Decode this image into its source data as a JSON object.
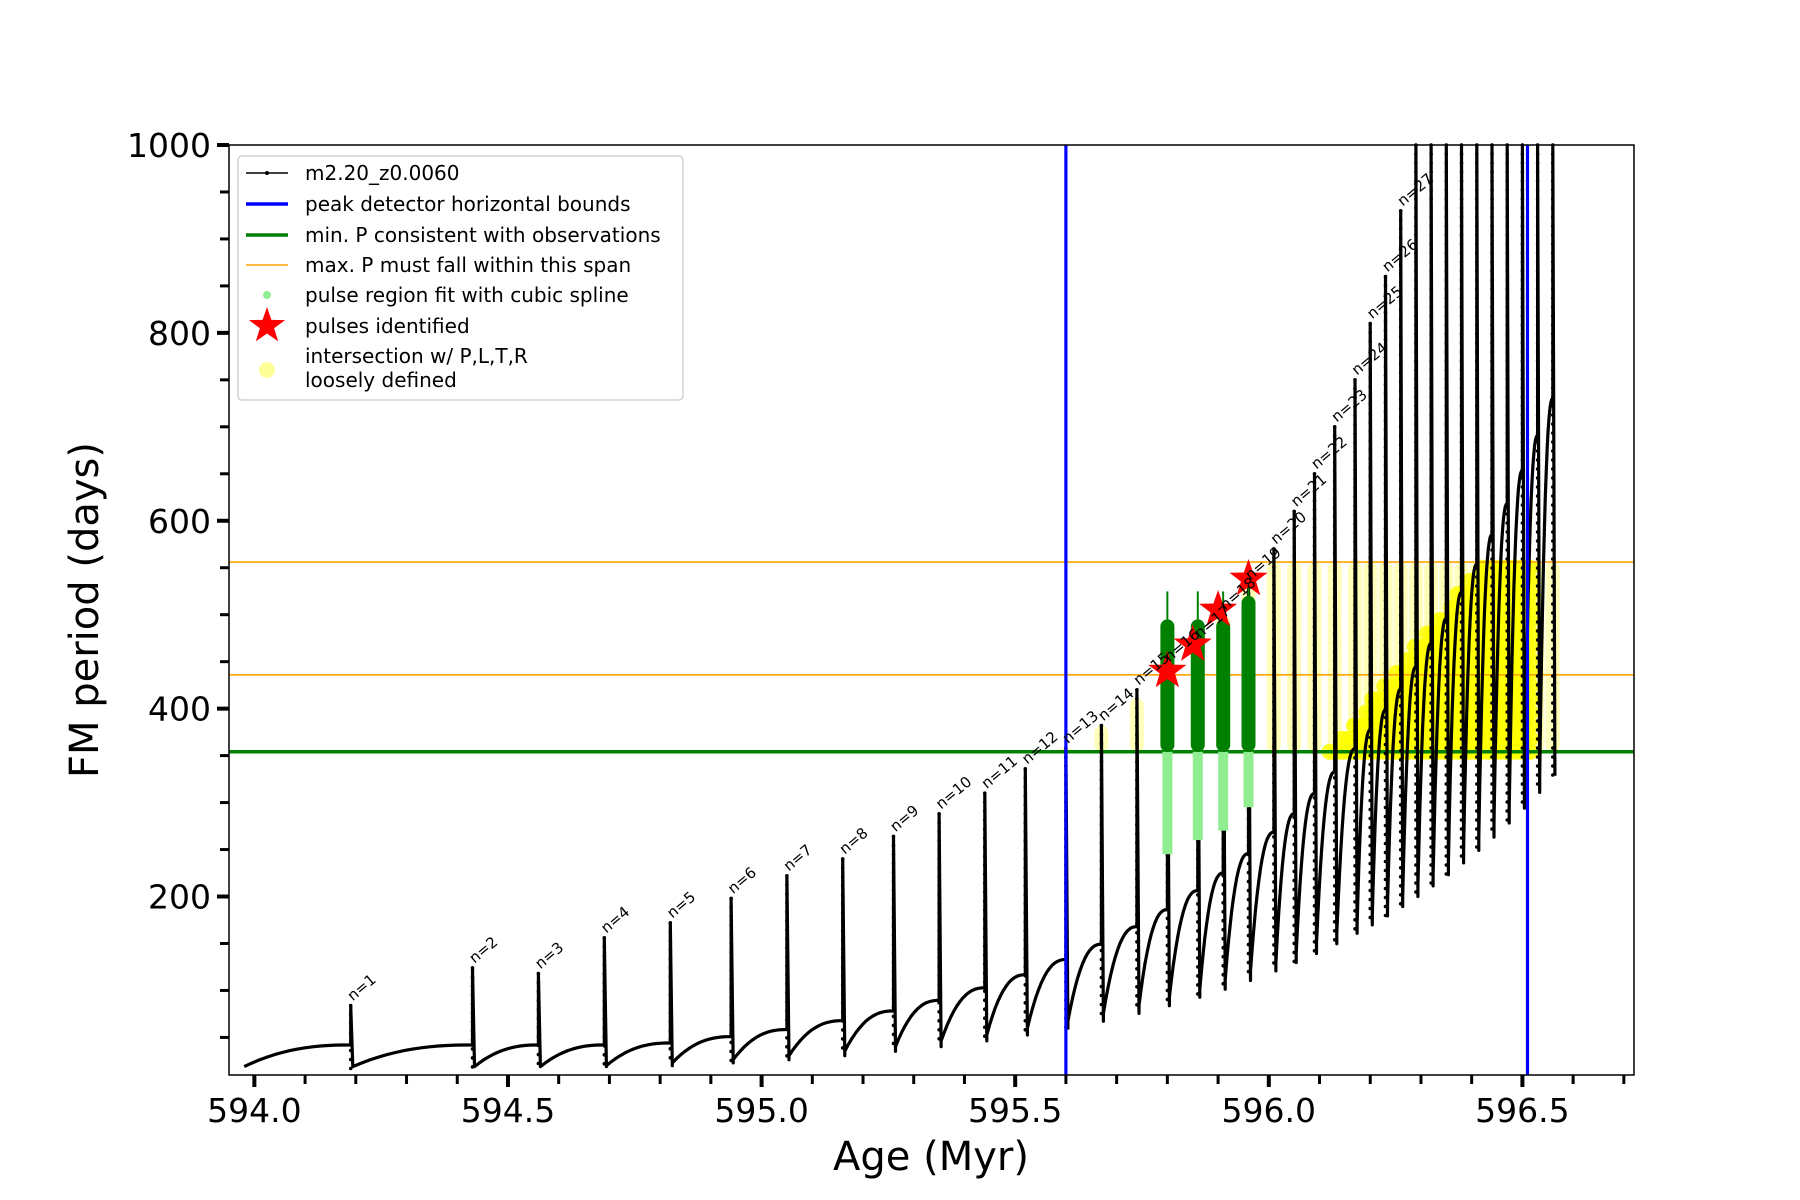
{
  "chart_data": {
    "type": "line",
    "xlabel": "Age (Myr)",
    "ylabel": "FM period (days)",
    "xlim": [
      593.95,
      596.72
    ],
    "ylim": [
      10,
      1000
    ],
    "x_major_ticks": [
      594.0,
      594.5,
      595.0,
      595.5,
      596.0,
      596.5
    ],
    "x_tick_labels": [
      "594.0",
      "594.5",
      "595.0",
      "595.5",
      "596.0",
      "596.5"
    ],
    "x_minor_step": 0.1,
    "y_major_ticks": [
      200,
      400,
      600,
      800,
      1000
    ],
    "y_tick_labels": [
      "200",
      "400",
      "600",
      "800",
      "1000"
    ],
    "y_minor_step": 50,
    "grid": false,
    "legend_position": "top-left",
    "legend": [
      {
        "label": "m2.20_z0.0060",
        "kind": "line-marker",
        "color": "#000000"
      },
      {
        "label": "peak detector horizontal bounds",
        "kind": "line",
        "color": "#0000ff"
      },
      {
        "label": "min. P consistent with observations",
        "kind": "line",
        "color": "#008000"
      },
      {
        "label": "max. P must fall within this span",
        "kind": "thin-line",
        "color": "#ffa500"
      },
      {
        "label": "pulse region fit with cubic spline",
        "kind": "dot",
        "color": "#90ee90"
      },
      {
        "label": "pulses identified",
        "kind": "star",
        "color": "#ff0000"
      },
      {
        "label": "intersection w/ P,L,T,R",
        "label2": "loosely defined",
        "kind": "circle",
        "color": "#ffff99"
      }
    ],
    "vertical_lines": [
      {
        "x": 595.6,
        "color": "#0000ff"
      },
      {
        "x": 596.51,
        "color": "#0000ff"
      }
    ],
    "horizontal_lines": [
      {
        "y": 354,
        "color": "#008000",
        "kind": "thick"
      },
      {
        "y": 436,
        "color": "#ffa500",
        "kind": "thin"
      },
      {
        "y": 556,
        "color": "#ffa500",
        "kind": "thin"
      }
    ],
    "pulses": [
      {
        "n": "n=1",
        "x": 594.19,
        "peak": 84
      },
      {
        "n": "n=2",
        "x": 594.43,
        "peak": 124
      },
      {
        "n": "n=3",
        "x": 594.56,
        "peak": 118
      },
      {
        "n": "n=4",
        "x": 594.69,
        "peak": 156
      },
      {
        "n": "n=5",
        "x": 594.82,
        "peak": 172
      },
      {
        "n": "n=6",
        "x": 594.94,
        "peak": 198
      },
      {
        "n": "n=7",
        "x": 595.05,
        "peak": 222
      },
      {
        "n": "n=8",
        "x": 595.16,
        "peak": 240
      },
      {
        "n": "n=9",
        "x": 595.26,
        "peak": 264
      },
      {
        "n": "n=10",
        "x": 595.35,
        "peak": 288
      },
      {
        "n": "n=11",
        "x": 595.44,
        "peak": 310
      },
      {
        "n": "n=12",
        "x": 595.52,
        "peak": 336
      },
      {
        "n": "n=13",
        "x": 595.6,
        "peak": 358
      },
      {
        "n": "n=14",
        "x": 595.67,
        "peak": 382
      },
      {
        "n": "n=15",
        "x": 595.74,
        "peak": 420
      },
      {
        "n": "n=16",
        "x": 595.8,
        "peak": 445
      },
      {
        "n": "n=17",
        "x": 595.86,
        "peak": 470
      },
      {
        "n": "n=18",
        "x": 595.91,
        "peak": 500
      },
      {
        "n": "n=19",
        "x": 595.96,
        "peak": 532
      },
      {
        "n": "n=20",
        "x": 596.01,
        "peak": 570
      },
      {
        "n": "n=21",
        "x": 596.05,
        "peak": 610
      },
      {
        "n": "n=22",
        "x": 596.09,
        "peak": 650
      },
      {
        "n": "n=23",
        "x": 596.13,
        "peak": 700
      },
      {
        "n": "n=24",
        "x": 596.17,
        "peak": 750
      },
      {
        "n": "n=25",
        "x": 596.2,
        "peak": 810
      },
      {
        "n": "n=26",
        "x": 596.23,
        "peak": 860
      },
      {
        "n": "n=27",
        "x": 596.26,
        "peak": 930
      }
    ],
    "extra_spikes_x": [
      596.29,
      596.32,
      596.35,
      596.38,
      596.41,
      596.44,
      596.47,
      596.5,
      596.53,
      596.56
    ],
    "pulses_identified": [
      {
        "x": 595.8,
        "y": 440
      },
      {
        "x": 595.85,
        "y": 468
      },
      {
        "x": 595.9,
        "y": 505
      },
      {
        "x": 595.96,
        "y": 538
      }
    ],
    "spline_fit_regions": [
      {
        "x": 595.8,
        "y_min": 245,
        "y_max": 495
      },
      {
        "x": 595.86,
        "y_min": 260,
        "y_max": 495
      },
      {
        "x": 595.91,
        "y_min": 270,
        "y_max": 495
      },
      {
        "x": 595.96,
        "y_min": 295,
        "y_max": 520
      }
    ]
  }
}
